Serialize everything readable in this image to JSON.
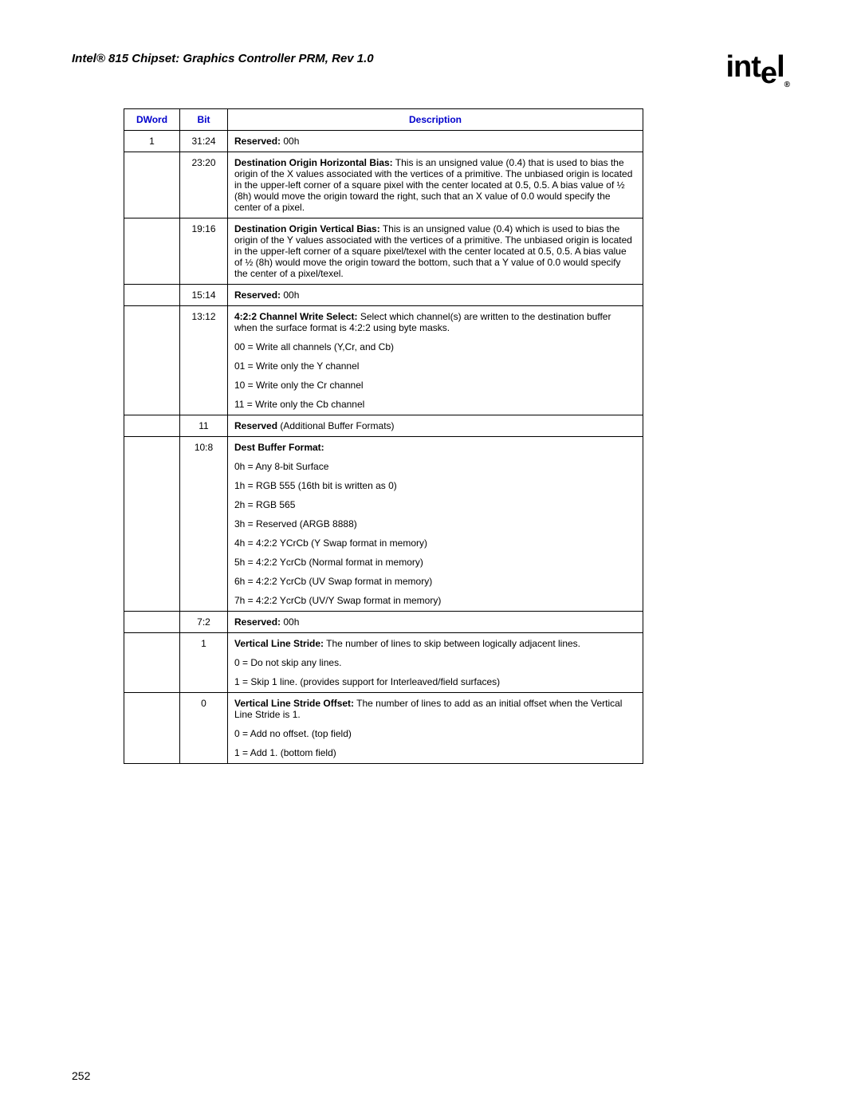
{
  "doc_title": "Intel® 815 Chipset: Graphics Controller PRM, Rev 1.0",
  "logo_text": "intel",
  "page_number": "252",
  "headers": {
    "dword": "DWord",
    "bit": "Bit",
    "desc": "Description"
  },
  "rows": [
    {
      "dword": "1",
      "bit": "31:24",
      "desc": [
        {
          "bold": "Reserved:",
          "text": " 00h"
        }
      ]
    },
    {
      "dword": "",
      "bit": "23:20",
      "desc": [
        {
          "bold": "Destination Origin Horizontal Bias:",
          "text": " This is an unsigned value (0.4) that is used to bias the origin of the X values associated with the vertices of a primitive. The unbiased origin is located in the upper-left corner of a square pixel with the center located at 0.5, 0.5. A bias value of ½ (8h) would move the origin toward the right, such that an X value of 0.0 would specify the center of a pixel."
        }
      ]
    },
    {
      "dword": "",
      "bit": "19:16",
      "desc": [
        {
          "bold": "Destination Origin Vertical Bias:",
          "text": " This is an unsigned value (0.4) which is used to bias the origin of the Y values associated with the vertices of a primitive. The unbiased origin is located in the upper-left corner of a square pixel/texel with the center located at 0.5, 0.5. A bias value of ½ (8h) would move the origin toward the bottom, such that a Y value of 0.0 would specify the center of a pixel/texel."
        }
      ]
    },
    {
      "dword": "",
      "bit": "15:14",
      "desc": [
        {
          "bold": "Reserved:",
          "text": " 00h"
        }
      ]
    },
    {
      "dword": "",
      "bit": "13:12",
      "desc": [
        {
          "bold": "4:2:2 Channel Write Select:",
          "text": " Select which channel(s) are written to the destination buffer when the surface format is 4:2:2 using byte masks."
        },
        {
          "text": "00 = Write all channels (Y,Cr, and Cb)"
        },
        {
          "text": "01 = Write only the Y channel"
        },
        {
          "text": "10 = Write only the Cr channel"
        },
        {
          "text": "11 = Write only the Cb channel"
        }
      ]
    },
    {
      "dword": "",
      "bit": "11",
      "desc": [
        {
          "bold": "Reserved",
          "text": " (Additional Buffer Formats)"
        }
      ]
    },
    {
      "dword": "",
      "bit": "10:8",
      "desc": [
        {
          "bold": "Dest Buffer Format:",
          "text": ""
        },
        {
          "text": "0h = Any 8-bit Surface"
        },
        {
          "text": "1h = RGB 555 (16th bit is written as 0)"
        },
        {
          "text": "2h = RGB 565"
        },
        {
          "text": "3h = Reserved (ARGB 8888)"
        },
        {
          "text": "4h = 4:2:2 YCrCb (Y Swap format in memory)"
        },
        {
          "text": "5h = 4:2:2 YcrCb (Normal format in memory)"
        },
        {
          "text": "6h = 4:2:2 YcrCb (UV Swap format in memory)"
        },
        {
          "text": "7h = 4:2:2 YcrCb (UV/Y Swap format in memory)"
        }
      ]
    },
    {
      "dword": "",
      "bit": "7:2",
      "desc": [
        {
          "bold": "Reserved:",
          "text": " 00h"
        }
      ]
    },
    {
      "dword": "",
      "bit": "1",
      "desc": [
        {
          "bold": "Vertical Line Stride:",
          "text": " The number of lines to skip between logically adjacent lines."
        },
        {
          "text": "0 = Do not skip any lines."
        },
        {
          "text": "1 = Skip 1 line. (provides support for Interleaved/field surfaces)"
        }
      ]
    },
    {
      "dword": "",
      "bit": "0",
      "desc": [
        {
          "bold": "Vertical Line Stride Offset:",
          "text": " The number of lines to add as an initial offset when the Vertical Line Stride is 1."
        },
        {
          "text": "0 = Add no offset. (top field)"
        },
        {
          "text": "1 = Add 1. (bottom field)"
        }
      ]
    }
  ]
}
